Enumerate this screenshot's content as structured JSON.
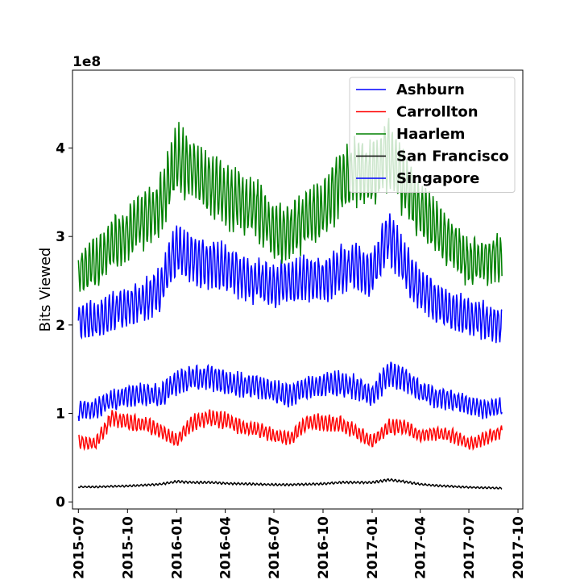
{
  "chart_data": {
    "type": "line",
    "title": "",
    "xlabel": "",
    "ylabel": "Bits Viewed",
    "y_offset_label": "1e8",
    "legend_position": "upper-right",
    "grid": false,
    "xlim": [
      "2015-06-20",
      "2017-10-10"
    ],
    "ylim": [
      -8000000,
      488000000
    ],
    "x_ticks": [
      "2015-07",
      "2015-10",
      "2016-01",
      "2016-04",
      "2016-07",
      "2016-10",
      "2017-01",
      "2017-04",
      "2017-07",
      "2017-10"
    ],
    "y_ticks": [
      {
        "value": 0,
        "label": "0"
      },
      {
        "value": 100000000,
        "label": "1"
      },
      {
        "value": 200000000,
        "label": "2"
      },
      {
        "value": 300000000,
        "label": "3"
      },
      {
        "value": 400000000,
        "label": "4"
      }
    ],
    "series": [
      {
        "name": "Ashburn",
        "color": "#0000ff",
        "points": [
          [
            "2015-07-01",
            205000000
          ],
          [
            "2015-08-01",
            205000000
          ],
          [
            "2015-09-01",
            215000000
          ],
          [
            "2015-10-01",
            220000000
          ],
          [
            "2015-11-01",
            230000000
          ],
          [
            "2015-12-01",
            240000000
          ],
          [
            "2016-01-01",
            285000000
          ],
          [
            "2016-02-01",
            275000000
          ],
          [
            "2016-03-01",
            270000000
          ],
          [
            "2016-04-01",
            265000000
          ],
          [
            "2016-05-01",
            255000000
          ],
          [
            "2016-06-01",
            250000000
          ],
          [
            "2016-07-01",
            245000000
          ],
          [
            "2016-08-01",
            250000000
          ],
          [
            "2016-09-01",
            252000000
          ],
          [
            "2016-10-01",
            252000000
          ],
          [
            "2016-11-01",
            262000000
          ],
          [
            "2016-12-01",
            265000000
          ],
          [
            "2017-01-01",
            260000000
          ],
          [
            "2017-02-01",
            300000000
          ],
          [
            "2017-03-01",
            270000000
          ],
          [
            "2017-04-01",
            240000000
          ],
          [
            "2017-05-01",
            225000000
          ],
          [
            "2017-06-01",
            215000000
          ],
          [
            "2017-07-01",
            210000000
          ],
          [
            "2017-08-01",
            205000000
          ],
          [
            "2017-09-01",
            200000000
          ]
        ]
      },
      {
        "name": "Carrollton",
        "color": "#ff0000",
        "points": [
          [
            "2015-07-01",
            68000000
          ],
          [
            "2015-08-01",
            65000000
          ],
          [
            "2015-09-01",
            95000000
          ],
          [
            "2015-10-01",
            90000000
          ],
          [
            "2015-11-01",
            88000000
          ],
          [
            "2015-12-01",
            80000000
          ],
          [
            "2016-01-01",
            70000000
          ],
          [
            "2016-02-01",
            90000000
          ],
          [
            "2016-03-01",
            95000000
          ],
          [
            "2016-04-01",
            92000000
          ],
          [
            "2016-05-01",
            85000000
          ],
          [
            "2016-06-01",
            82000000
          ],
          [
            "2016-07-01",
            75000000
          ],
          [
            "2016-08-01",
            72000000
          ],
          [
            "2016-09-01",
            90000000
          ],
          [
            "2016-10-01",
            90000000
          ],
          [
            "2016-11-01",
            88000000
          ],
          [
            "2016-12-01",
            80000000
          ],
          [
            "2017-01-01",
            68000000
          ],
          [
            "2017-02-01",
            85000000
          ],
          [
            "2017-03-01",
            85000000
          ],
          [
            "2017-04-01",
            75000000
          ],
          [
            "2017-05-01",
            78000000
          ],
          [
            "2017-06-01",
            75000000
          ],
          [
            "2017-07-01",
            65000000
          ],
          [
            "2017-08-01",
            72000000
          ],
          [
            "2017-09-01",
            80000000
          ]
        ]
      },
      {
        "name": "Haarlem",
        "color": "#008000",
        "points": [
          [
            "2015-07-01",
            258000000
          ],
          [
            "2015-08-01",
            270000000
          ],
          [
            "2015-09-01",
            290000000
          ],
          [
            "2015-10-01",
            305000000
          ],
          [
            "2015-11-01",
            320000000
          ],
          [
            "2015-12-01",
            335000000
          ],
          [
            "2016-01-01",
            390000000
          ],
          [
            "2016-02-01",
            375000000
          ],
          [
            "2016-03-01",
            360000000
          ],
          [
            "2016-04-01",
            345000000
          ],
          [
            "2016-05-01",
            340000000
          ],
          [
            "2016-06-01",
            330000000
          ],
          [
            "2016-07-01",
            305000000
          ],
          [
            "2016-08-01",
            305000000
          ],
          [
            "2016-09-01",
            320000000
          ],
          [
            "2016-10-01",
            330000000
          ],
          [
            "2016-11-01",
            360000000
          ],
          [
            "2016-12-01",
            375000000
          ],
          [
            "2017-01-01",
            370000000
          ],
          [
            "2017-02-01",
            395000000
          ],
          [
            "2017-03-01",
            360000000
          ],
          [
            "2017-04-01",
            330000000
          ],
          [
            "2017-05-01",
            310000000
          ],
          [
            "2017-06-01",
            290000000
          ],
          [
            "2017-07-01",
            270000000
          ],
          [
            "2017-08-01",
            275000000
          ],
          [
            "2017-09-01",
            275000000
          ]
        ]
      },
      {
        "name": "San Francisco",
        "color": "#000000",
        "points": [
          [
            "2015-07-01",
            17000000
          ],
          [
            "2015-08-01",
            17000000
          ],
          [
            "2015-09-01",
            17500000
          ],
          [
            "2015-10-01",
            18000000
          ],
          [
            "2015-11-01",
            19000000
          ],
          [
            "2015-12-01",
            20000000
          ],
          [
            "2016-01-01",
            23000000
          ],
          [
            "2016-02-01",
            22000000
          ],
          [
            "2016-03-01",
            22000000
          ],
          [
            "2016-04-01",
            21000000
          ],
          [
            "2016-05-01",
            20500000
          ],
          [
            "2016-06-01",
            20000000
          ],
          [
            "2016-07-01",
            19500000
          ],
          [
            "2016-08-01",
            19500000
          ],
          [
            "2016-09-01",
            20000000
          ],
          [
            "2016-10-01",
            20500000
          ],
          [
            "2016-11-01",
            22000000
          ],
          [
            "2016-12-01",
            22000000
          ],
          [
            "2017-01-01",
            22000000
          ],
          [
            "2017-02-01",
            25000000
          ],
          [
            "2017-03-01",
            23000000
          ],
          [
            "2017-04-01",
            20000000
          ],
          [
            "2017-05-01",
            18500000
          ],
          [
            "2017-06-01",
            17500000
          ],
          [
            "2017-07-01",
            16500000
          ],
          [
            "2017-08-01",
            16000000
          ],
          [
            "2017-09-01",
            15500000
          ]
        ]
      },
      {
        "name": "Singapore",
        "color": "#0000ff",
        "points": [
          [
            "2015-07-01",
            103000000
          ],
          [
            "2015-08-01",
            105000000
          ],
          [
            "2015-09-01",
            115000000
          ],
          [
            "2015-10-01",
            120000000
          ],
          [
            "2015-11-01",
            122000000
          ],
          [
            "2015-12-01",
            120000000
          ],
          [
            "2016-01-01",
            135000000
          ],
          [
            "2016-02-01",
            140000000
          ],
          [
            "2016-03-01",
            142000000
          ],
          [
            "2016-04-01",
            135000000
          ],
          [
            "2016-05-01",
            132000000
          ],
          [
            "2016-06-01",
            130000000
          ],
          [
            "2016-07-01",
            125000000
          ],
          [
            "2016-08-01",
            120000000
          ],
          [
            "2016-09-01",
            130000000
          ],
          [
            "2016-10-01",
            132000000
          ],
          [
            "2016-11-01",
            135000000
          ],
          [
            "2016-12-01",
            130000000
          ],
          [
            "2017-01-01",
            120000000
          ],
          [
            "2017-02-01",
            145000000
          ],
          [
            "2017-03-01",
            140000000
          ],
          [
            "2017-04-01",
            125000000
          ],
          [
            "2017-05-01",
            118000000
          ],
          [
            "2017-06-01",
            115000000
          ],
          [
            "2017-07-01",
            110000000
          ],
          [
            "2017-08-01",
            105000000
          ],
          [
            "2017-09-01",
            108000000
          ]
        ]
      }
    ]
  }
}
